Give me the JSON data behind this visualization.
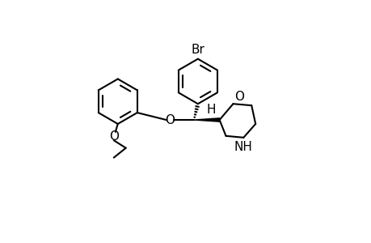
{
  "background_color": "#ffffff",
  "line_color": "#000000",
  "line_width": 1.5,
  "font_size": 10,
  "fig_width": 4.6,
  "fig_height": 3.0,
  "dpi": 100,
  "xlim": [
    0,
    46
  ],
  "ylim": [
    0,
    30
  ],
  "br_label": "Br",
  "o_morph_label": "O",
  "nh_label": "NH",
  "o_ether_label": "O",
  "o_ethoxy_label": "O",
  "h_label": "H"
}
